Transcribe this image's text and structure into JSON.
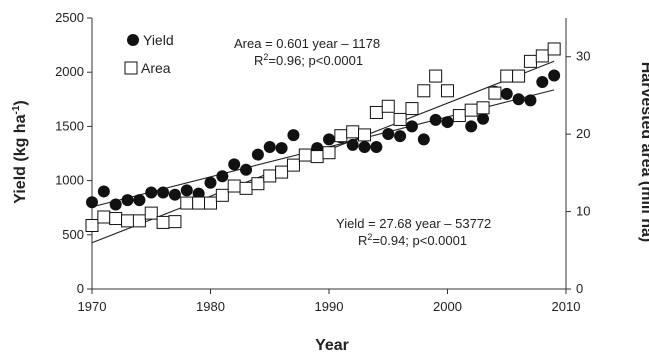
{
  "chart_data": {
    "type": "scatter",
    "xlabel": "Year",
    "ylabel_left": "Yield (kg ha",
    "ylabel_left_sup": "-1",
    "ylabel_left_end": ")",
    "ylabel_right": "Harvested area (mill ha)",
    "xlim": [
      1970,
      2010
    ],
    "ylim_left": [
      0,
      2500
    ],
    "ylim_right": [
      0,
      35
    ],
    "x_ticks": [
      "1970",
      "1980",
      "1990",
      "2000",
      "2010"
    ],
    "y_left_ticks": [
      "0",
      "500",
      "1000",
      "1500",
      "2000",
      "2500"
    ],
    "y_right_ticks": [
      "0",
      "10",
      "20",
      "30"
    ],
    "legend_position": "top-left",
    "series": [
      {
        "name": "Yield",
        "axis": "left",
        "marker": "filled-circle",
        "color": "#111111",
        "x": [
          1970,
          1971,
          1972,
          1973,
          1974,
          1975,
          1976,
          1977,
          1978,
          1979,
          1980,
          1981,
          1982,
          1983,
          1984,
          1985,
          1986,
          1987,
          1988,
          1989,
          1990,
          1991,
          1992,
          1993,
          1994,
          1995,
          1996,
          1997,
          1998,
          1999,
          2000,
          2001,
          2002,
          2003,
          2004,
          2005,
          2006,
          2007,
          2008,
          2009
        ],
        "y": [
          800,
          900,
          780,
          820,
          820,
          890,
          890,
          870,
          910,
          880,
          980,
          1040,
          1150,
          1100,
          1240,
          1310,
          1300,
          1420,
          1240,
          1300,
          1380,
          1400,
          1330,
          1310,
          1310,
          1430,
          1410,
          1500,
          1380,
          1560,
          1540,
          1600,
          1500,
          1570,
          1820,
          1800,
          1750,
          1740,
          1910,
          1970
        ]
      },
      {
        "name": "Area",
        "axis": "right",
        "marker": "open-square",
        "color": "#111111",
        "x": [
          1970,
          1971,
          1972,
          1973,
          1974,
          1975,
          1976,
          1977,
          1978,
          1979,
          1980,
          1981,
          1982,
          1983,
          1984,
          1985,
          1986,
          1987,
          1988,
          1989,
          1990,
          1991,
          1992,
          1993,
          1994,
          1995,
          1996,
          1997,
          1998,
          1999,
          2000,
          2001,
          2002,
          2003,
          2004,
          2005,
          2006,
          2007,
          2008,
          2009
        ],
        "y": [
          8.2,
          9.3,
          9.1,
          8.8,
          8.8,
          9.8,
          8.6,
          8.7,
          11.1,
          11.1,
          11.1,
          12.1,
          13.3,
          13.0,
          13.6,
          14.6,
          15.1,
          16.0,
          17.3,
          17.1,
          17.6,
          19.8,
          20.3,
          19.9,
          22.8,
          23.6,
          21.9,
          23.3,
          25.6,
          27.5,
          25.6,
          22.4,
          23.1,
          23.4,
          25.3,
          27.5,
          27.5,
          29.4,
          30.1,
          31.0
        ]
      }
    ],
    "trendlines": [
      {
        "series": "Yield",
        "slope": 27.68,
        "intercept": -53772
      },
      {
        "series": "Area",
        "slope": 0.601,
        "intercept": -1178
      }
    ],
    "annotations": {
      "area_eq": "Area = 0.601 year – 1178",
      "area_r2_pre": "R",
      "area_r2_sup": "2",
      "area_r2_post": "=0.96; p<0.0001",
      "yield_eq": "Yield = 27.68 year – 53772",
      "yield_r2_pre": "R",
      "yield_r2_sup": "2",
      "yield_r2_post": "=0.94; p<0.0001"
    }
  }
}
